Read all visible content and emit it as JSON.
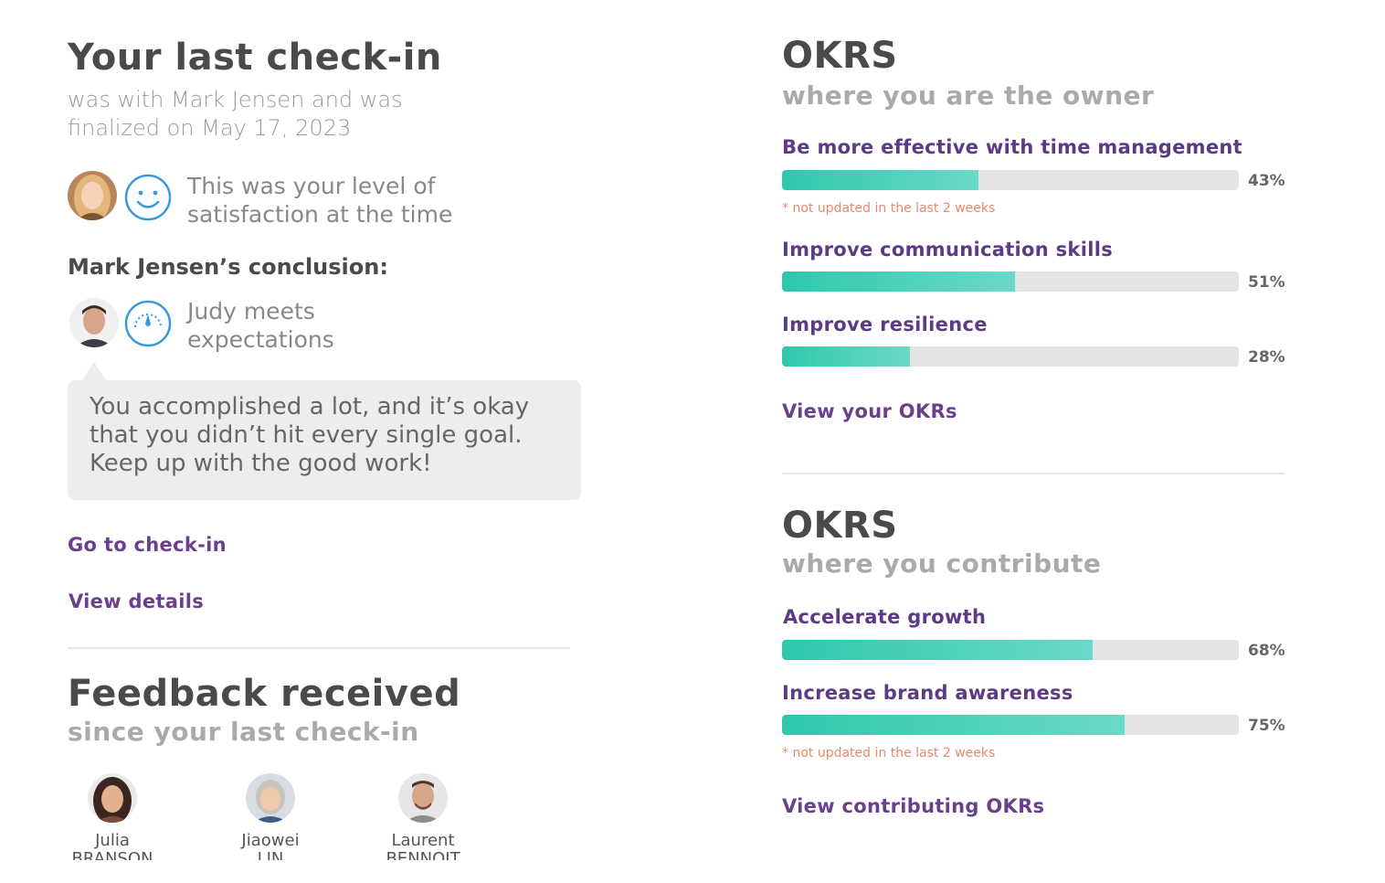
{
  "checkin": {
    "title": "Your last check-in",
    "subtitle_line1": "was with Mark Jensen and was",
    "subtitle_line2": "finalized on May 17, 2023",
    "satisfaction_line1": "This was your level of",
    "satisfaction_line2": "satisfaction at the time",
    "conclusion_label": "Mark Jensen’s conclusion:",
    "conclusion_line1": "Judy meets",
    "conclusion_line2": "expectations",
    "message_line1": "You accomplished a lot, and it’s okay",
    "message_line2": "that you didn’t hit every single goal.",
    "message_line3": "Keep up with the good work!",
    "go_link": "Go to check-in",
    "details_link": "View details"
  },
  "feedback": {
    "title": "Feedback received",
    "subtitle": "since your last check-in",
    "people": [
      {
        "first": "Julia",
        "last": "BRANSON"
      },
      {
        "first": "Jiaowei",
        "last": "LIN"
      },
      {
        "first": "Laurent",
        "last": "BENNOIT"
      }
    ]
  },
  "okrs_owner": {
    "title": "OKRS",
    "subtitle": "where you are the owner",
    "items": [
      {
        "name": "Be more effective with time management",
        "progress": 43,
        "pct_label": "43%",
        "warning": "* not updated in the last 2 weeks"
      },
      {
        "name": "Improve communication skills",
        "progress": 51,
        "pct_label": "51%"
      },
      {
        "name": "Improve resilience",
        "progress": 28,
        "pct_label": "28%"
      }
    ],
    "link": "View your OKRs"
  },
  "okrs_contrib": {
    "title": "OKRS",
    "subtitle": "where you contribute",
    "items": [
      {
        "name": "Accelerate growth",
        "progress": 68,
        "pct_label": "68%"
      },
      {
        "name": "Increase brand awareness",
        "progress": 75,
        "pct_label": "75%",
        "warning": "* not updated in the last 2 weeks"
      }
    ],
    "link": "View contributing OKRs"
  },
  "colors": {
    "accent": "#6b3f8e",
    "progress": "#2ec8ac",
    "warning": "#e8896b",
    "icon": "#3a9ad9"
  }
}
